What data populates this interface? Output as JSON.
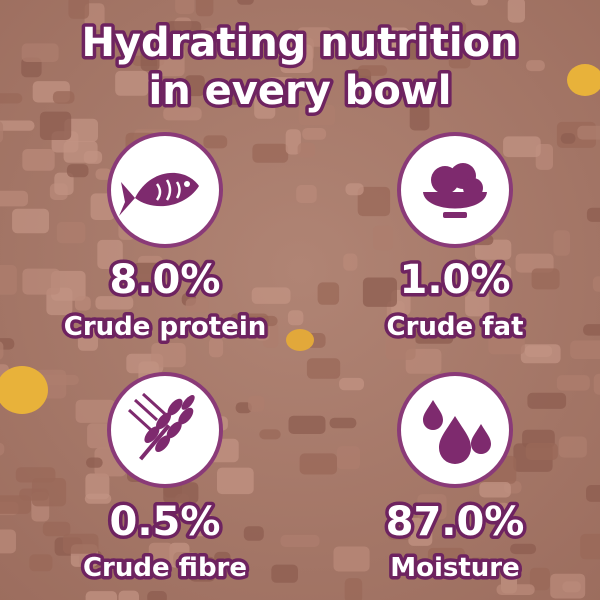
{
  "header": {
    "title_lines": [
      "Hydrating nutrition",
      "in every bowl"
    ]
  },
  "items": [
    {
      "value": "8.0%",
      "label": "Crude protein"
    },
    {
      "value": "1.0%",
      "label": "Crude fat"
    },
    {
      "value": "0.5%",
      "label": "Crude fibre"
    },
    {
      "value": "87.0%",
      "label": "Moisture"
    }
  ]
}
